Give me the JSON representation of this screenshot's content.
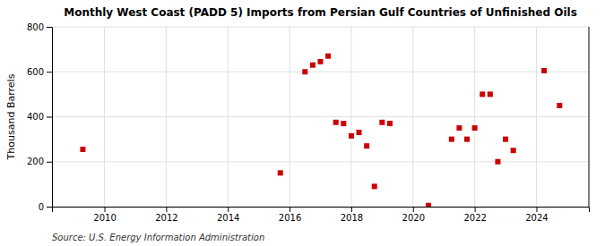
{
  "chart_data": {
    "type": "scatter",
    "title": "Monthly West Coast (PADD 5) Imports from Persian Gulf Countries of Unfinished Oils",
    "ylabel": "Thousand Barrels",
    "source": "Source: U.S. Energy Information Administration",
    "x": [
      2009.3,
      2015.7,
      2016.5,
      2016.75,
      2017.0,
      2017.25,
      2017.5,
      2017.75,
      2018.0,
      2018.25,
      2018.5,
      2018.75,
      2019.0,
      2019.25,
      2020.5,
      2021.25,
      2021.5,
      2021.75,
      2022.0,
      2022.25,
      2022.5,
      2022.75,
      2023.0,
      2023.25,
      2024.25,
      2024.75
    ],
    "values": [
      255,
      150,
      600,
      630,
      645,
      670,
      375,
      370,
      315,
      330,
      270,
      90,
      375,
      370,
      5,
      300,
      350,
      300,
      350,
      500,
      500,
      200,
      300,
      250,
      605,
      450
    ],
    "color": "#cc0000",
    "marker": "square",
    "xlim": [
      2008.3,
      2025.7
    ],
    "ylim": [
      0,
      800
    ],
    "xticks": [
      2010,
      2012,
      2014,
      2016,
      2018,
      2020,
      2022,
      2024
    ],
    "yticks": [
      0,
      200,
      400,
      600,
      800
    ],
    "grid": true
  }
}
